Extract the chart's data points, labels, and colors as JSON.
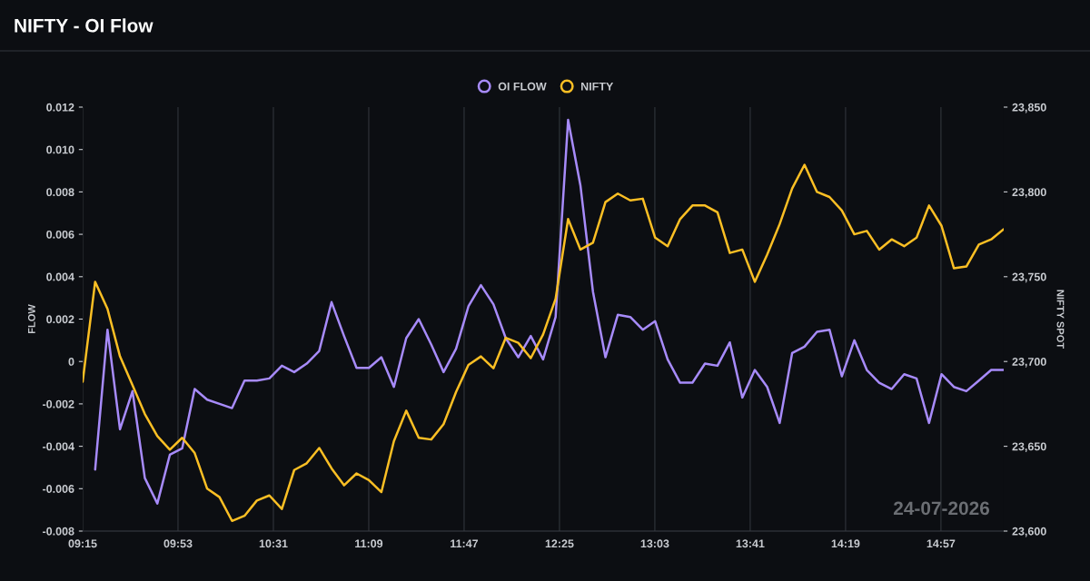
{
  "chart_data": {
    "type": "line",
    "title": "NIFTY - OI Flow",
    "ylabel": "FLOW",
    "y2label": "NIFTY SPOT",
    "x": [
      9.25,
      9.333,
      9.415,
      9.498,
      9.581,
      9.663,
      9.746,
      9.829,
      9.911,
      9.994,
      10.077,
      10.159,
      10.242,
      10.325,
      10.407,
      10.49,
      10.573,
      10.655,
      10.738,
      10.821,
      10.903,
      10.986,
      11.069,
      11.151,
      11.234,
      11.317,
      11.399,
      11.482,
      11.565,
      11.647,
      11.73,
      11.812,
      11.895,
      11.978,
      12.06,
      12.143,
      12.226,
      12.308,
      12.391,
      12.474,
      12.556,
      12.639,
      12.722,
      12.804,
      12.887,
      12.97,
      13.052,
      13.135,
      13.218,
      13.3,
      13.383,
      13.466,
      13.548,
      13.631,
      13.714,
      13.796,
      13.879,
      13.962,
      14.044,
      14.127,
      14.21,
      14.292,
      14.375,
      14.458,
      14.54,
      14.623,
      14.706,
      14.788,
      14.871,
      14.954,
      15.036,
      15.119,
      15.202,
      15.284,
      15.367
    ],
    "series": [
      {
        "name": "OI FLOW",
        "color": "#a78bfa",
        "axis": "y",
        "values": [
          null,
          -0.0051,
          0.0015,
          -0.0032,
          -0.0014,
          -0.0055,
          -0.0067,
          -0.0044,
          -0.0041,
          -0.0013,
          -0.0018,
          -0.002,
          -0.0022,
          -0.0009,
          -0.0009,
          -0.0008,
          -0.0002,
          -0.0005,
          -0.0001,
          0.0005,
          0.0028,
          0.0012,
          -0.0003,
          -0.0003,
          0.0002,
          -0.0012,
          0.0011,
          0.002,
          0.0008,
          -0.0005,
          0.0006,
          0.0026,
          0.0036,
          0.0027,
          0.0011,
          0.0002,
          0.0012,
          0.0001,
          0.0021,
          0.0114,
          0.0083,
          0.0033,
          0.0002,
          0.0022,
          0.0021,
          0.0015,
          0.0019,
          0.0001,
          -0.001,
          -0.001,
          -0.0001,
          -0.0002,
          0.0009,
          -0.0017,
          -0.0004,
          -0.0012,
          -0.0029,
          0.0004,
          0.0007,
          0.0014,
          0.0015,
          -0.0007,
          0.001,
          -0.0004,
          -0.001,
          -0.0013,
          -0.0006,
          -0.0008,
          -0.0029,
          -0.0006,
          -0.0012,
          -0.0014,
          -0.0009,
          -0.0004,
          -0.0004
        ]
      },
      {
        "name": "NIFTY",
        "color": "#fbbf24",
        "axis": "y2",
        "values": [
          23688,
          23747,
          23731,
          23703,
          23686,
          23669,
          23656,
          23648,
          23655,
          23646,
          23625,
          23620,
          23606,
          23609,
          23618,
          23621,
          23613,
          23636,
          23640,
          23649,
          23637,
          23627,
          23634,
          23630,
          23623,
          23653,
          23671,
          23655,
          23654,
          23663,
          23682,
          23698,
          23703,
          23696,
          23714,
          23711,
          23702,
          23716,
          23737,
          23784,
          23766,
          23770,
          23794,
          23799,
          23795,
          23796,
          23773,
          23768,
          23784,
          23792,
          23792,
          23788,
          23764,
          23766,
          23747,
          23763,
          23781,
          23802,
          23816,
          23800,
          23797,
          23789,
          23775,
          23777,
          23766,
          23772,
          23768,
          23773,
          23792,
          23780,
          23755,
          23756,
          23769,
          23772,
          23778
        ]
      }
    ],
    "xlim": [
      9.25,
      15.367
    ],
    "xticks": [
      {
        "value": 9.25,
        "label": "09:15"
      },
      {
        "value": 9.8833,
        "label": "09:53"
      },
      {
        "value": 10.5167,
        "label": "10:31"
      },
      {
        "value": 11.15,
        "label": "11:09"
      },
      {
        "value": 11.7833,
        "label": "11:47"
      },
      {
        "value": 12.4167,
        "label": "12:25"
      },
      {
        "value": 13.05,
        "label": "13:03"
      },
      {
        "value": 13.6833,
        "label": "13:41"
      },
      {
        "value": 14.3167,
        "label": "14:19"
      },
      {
        "value": 14.95,
        "label": "14:57"
      }
    ],
    "ylim": [
      -0.008,
      0.012
    ],
    "yticks": [
      -0.008,
      -0.006,
      -0.004,
      -0.002,
      0,
      0.002,
      0.004,
      0.006,
      0.008,
      {
        "value": 0.01,
        "label": "0.010"
      },
      0.012
    ],
    "y2lim": [
      23600,
      23850
    ],
    "y2ticks": [
      {
        "value": 23600,
        "label": "23,600"
      },
      {
        "value": 23650,
        "label": "23,650"
      },
      {
        "value": 23700,
        "label": "23,700"
      },
      {
        "value": 23750,
        "label": "23,750"
      },
      {
        "value": 23800,
        "label": "23,800"
      },
      {
        "value": 23850,
        "label": "23,850"
      }
    ],
    "grid": "x",
    "legend": "top",
    "marker": "none",
    "line_style": "solid",
    "annotations": [
      "24-07-2026"
    ]
  }
}
